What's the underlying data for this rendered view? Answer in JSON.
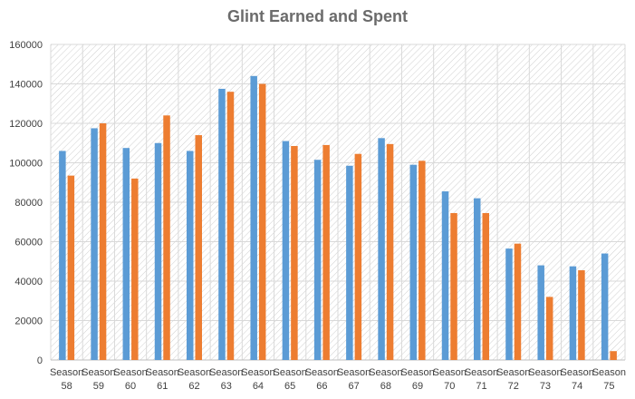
{
  "chart_data": {
    "type": "bar",
    "title": "Glint Earned and Spent",
    "xlabel": "",
    "ylabel": "",
    "ylim": [
      0,
      160000
    ],
    "yticks": [
      0,
      20000,
      40000,
      60000,
      80000,
      100000,
      120000,
      140000,
      160000
    ],
    "grid": true,
    "legend": "none",
    "categories": [
      [
        "Season",
        "58"
      ],
      [
        "Season",
        "59"
      ],
      [
        "Season",
        "60"
      ],
      [
        "Season",
        "61"
      ],
      [
        "Season",
        "62"
      ],
      [
        "Season",
        "63"
      ],
      [
        "Season",
        "64"
      ],
      [
        "Season",
        "65"
      ],
      [
        "Season",
        "66"
      ],
      [
        "Season",
        "67"
      ],
      [
        "Season",
        "68"
      ],
      [
        "Season",
        "69"
      ],
      [
        "Season",
        "70"
      ],
      [
        "Season",
        "71"
      ],
      [
        "Season",
        "72"
      ],
      [
        "Season",
        "73"
      ],
      [
        "Season",
        "74"
      ],
      [
        "Season",
        "75"
      ]
    ],
    "series": [
      {
        "color": "#5b9bd5",
        "values": [
          106000,
          117500,
          107500,
          110000,
          106000,
          137500,
          144000,
          111000,
          101500,
          98500,
          112500,
          99000,
          85500,
          82000,
          56500,
          48000,
          47500,
          54000
        ]
      },
      {
        "color": "#ed7d31",
        "values": [
          93500,
          120000,
          92000,
          124000,
          114000,
          136000,
          140000,
          108500,
          109000,
          104500,
          109500,
          101000,
          74500,
          74500,
          59000,
          32000,
          45500,
          4500
        ]
      }
    ]
  }
}
